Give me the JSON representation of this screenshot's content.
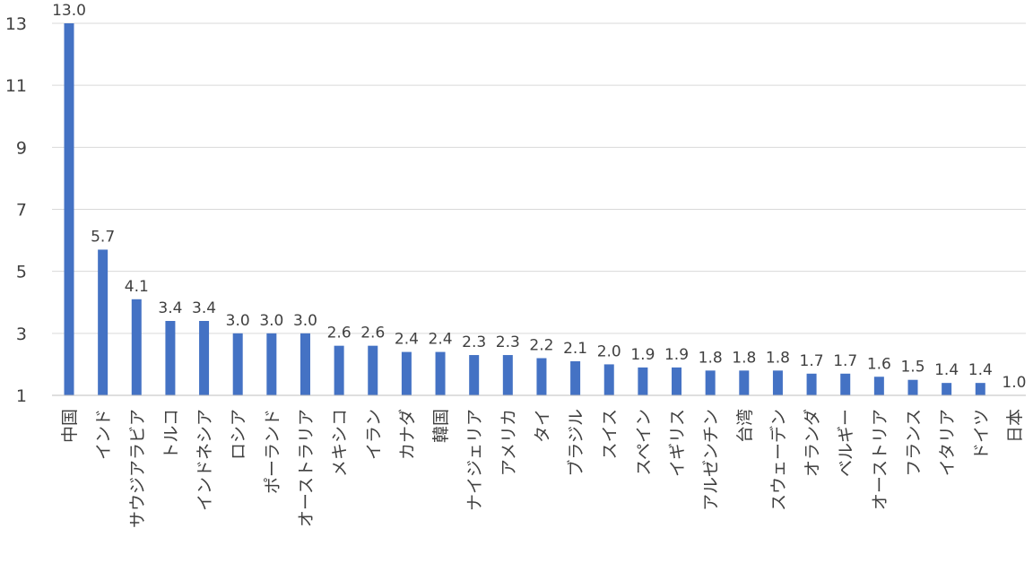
{
  "chart_data": {
    "type": "bar",
    "categories": [
      "中国",
      "インド",
      "サウジアラビア",
      "トルコ",
      "インドネシア",
      "ロシア",
      "ポーランド",
      "オーストラリア",
      "メキシコ",
      "イラン",
      "カナダ",
      "韓国",
      "ナイジェリア",
      "アメリカ",
      "タイ",
      "ブラジル",
      "スイス",
      "スペイン",
      "イギリス",
      "アルゼンチン",
      "台湾",
      "スウェーデン",
      "オランダ",
      "ベルギー",
      "オーストリア",
      "フランス",
      "イタリア",
      "ドイツ",
      "日本"
    ],
    "values": [
      13.0,
      5.7,
      4.1,
      3.4,
      3.4,
      3.0,
      3.0,
      3.0,
      2.6,
      2.6,
      2.4,
      2.4,
      2.3,
      2.3,
      2.2,
      2.1,
      2.0,
      1.9,
      1.9,
      1.8,
      1.8,
      1.8,
      1.7,
      1.7,
      1.6,
      1.5,
      1.4,
      1.4,
      1.0
    ],
    "data_labels": [
      "13.0",
      "5.7",
      "4.1",
      "3.4",
      "3.4",
      "3.0",
      "3.0",
      "3.0",
      "2.6",
      "2.6",
      "2.4",
      "2.4",
      "2.3",
      "2.3",
      "2.2",
      "2.1",
      "2.0",
      "1.9",
      "1.9",
      "1.8",
      "1.8",
      "1.8",
      "1.7",
      "1.7",
      "1.6",
      "1.5",
      "1.4",
      "1.4",
      "1.0"
    ],
    "yticks": [
      1,
      3,
      5,
      7,
      9,
      11,
      13
    ],
    "ylim": [
      1,
      13
    ],
    "grid": true,
    "bar_color": "#4472C4",
    "title": "",
    "xlabel": "",
    "ylabel": ""
  }
}
